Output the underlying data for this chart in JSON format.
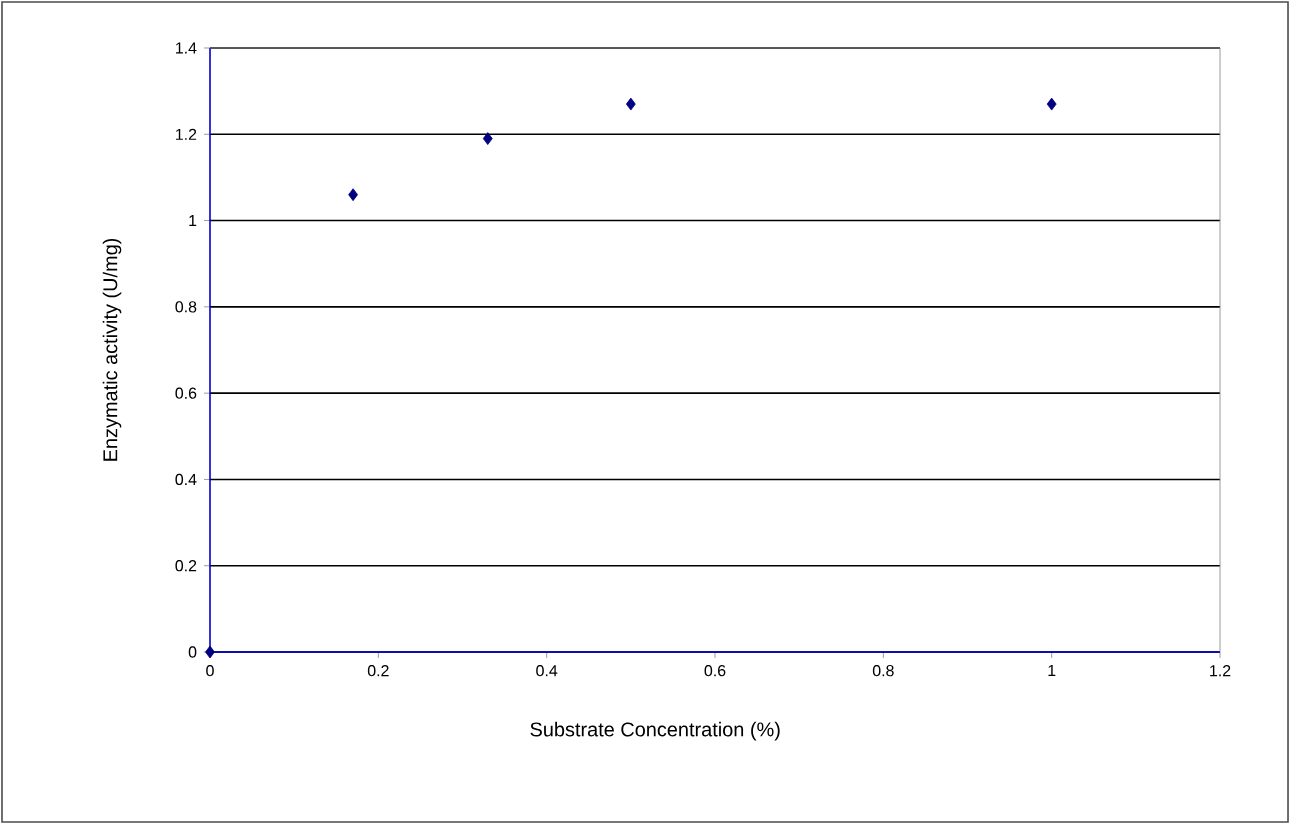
{
  "chart_data": {
    "type": "scatter",
    "xlabel": "Substrate Concentration (%)",
    "ylabel": "Enzymatic activity (U/mg)",
    "x": [
      0,
      0.17,
      0.33,
      0.5,
      1.0
    ],
    "values": [
      0,
      1.06,
      1.19,
      1.27,
      1.27
    ],
    "color": "#000080",
    "marker": "diamond",
    "grid": "y",
    "xlim": [
      0,
      1.2
    ],
    "ylim": [
      0,
      1.4
    ],
    "xticks": [
      0,
      0.2,
      0.4,
      0.6,
      0.8,
      1,
      1.2
    ],
    "yticks": [
      0,
      0.2,
      0.4,
      0.6,
      0.8,
      1,
      1.2,
      1.4
    ]
  }
}
